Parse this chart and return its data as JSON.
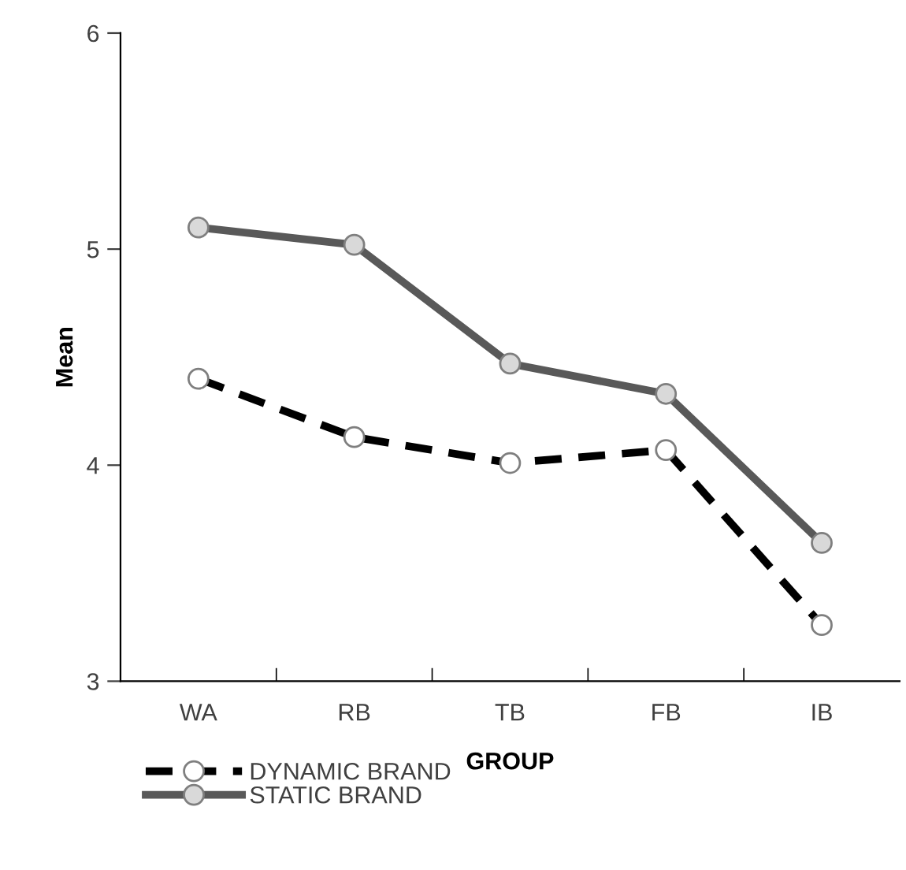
{
  "chart_data": {
    "type": "line",
    "xlabel": "GROUP",
    "ylabel": "Mean",
    "categories": [
      "WA",
      "RB",
      "TB",
      "FB",
      "IB"
    ],
    "series": [
      {
        "name": "DYNAMIC BRAND",
        "color": "#000000",
        "line_style": "dashed",
        "values": [
          4.4,
          4.13,
          4.01,
          4.07,
          3.26
        ]
      },
      {
        "name": "STATIC BRAND",
        "color": "#595959",
        "line_style": "solid",
        "values": [
          5.1,
          5.02,
          4.47,
          4.33,
          3.64
        ]
      }
    ],
    "ylim": [
      3,
      6
    ],
    "yticks": [
      3,
      4,
      5,
      6
    ],
    "grid": false,
    "legend": "bottom",
    "marker": "circle"
  }
}
